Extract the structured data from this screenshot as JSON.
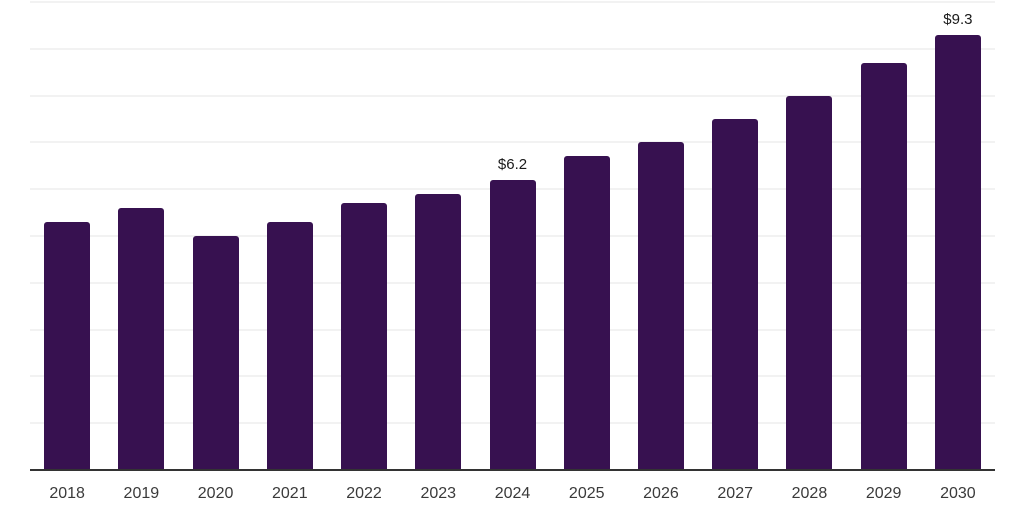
{
  "chart_data": {
    "type": "bar",
    "categories": [
      "2018",
      "2019",
      "2020",
      "2021",
      "2022",
      "2023",
      "2024",
      "2025",
      "2026",
      "2027",
      "2028",
      "2029",
      "2030"
    ],
    "values": [
      5.3,
      5.6,
      5.0,
      5.3,
      5.7,
      5.9,
      6.2,
      6.7,
      7.0,
      7.5,
      8.0,
      8.7,
      9.3
    ],
    "data_labels": [
      "",
      "",
      "",
      "",
      "",
      "",
      "$6.2",
      "",
      "",
      "",
      "",
      "",
      "$9.3"
    ],
    "title": "",
    "xlabel": "",
    "ylabel": "",
    "ylim": [
      0,
      10
    ],
    "grid_step": 1,
    "grid_on": true,
    "legend": "none",
    "colors": {
      "bar": "#371150",
      "gridline": "#f2f2f2",
      "axis_line": "#333333",
      "tick_label": "#3a3a3a",
      "data_label": "#1a1a1a",
      "background": "#ffffff"
    }
  }
}
